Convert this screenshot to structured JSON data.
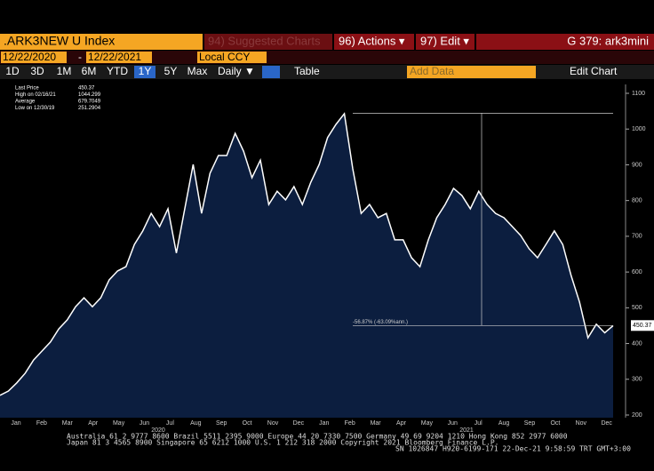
{
  "toolbar": {
    "ticker": ".ARK3NEW U Index",
    "suggested": "94) Suggested Charts",
    "actions": "96) Actions ▾",
    "edit": "97) Edit ▾",
    "page": "G 379: ark3mini",
    "start_date": "12/22/2020",
    "end_date": "12/22/2021",
    "currency": "Local CCY",
    "periods": [
      "1D",
      "3D",
      "1M",
      "6M",
      "YTD",
      "1Y",
      "5Y",
      "Max"
    ],
    "active_period": "1Y",
    "frequency": "Daily ▼",
    "table": "Table",
    "add_data": "Add Data",
    "edit_chart": "Edit Chart"
  },
  "chart_data": {
    "type": "area",
    "color": "#ffffff",
    "fill": "#0c1e3f",
    "values": [
      255,
      267,
      290,
      317,
      354,
      379,
      404,
      441,
      466,
      503,
      528,
      503,
      528,
      578,
      603,
      615,
      677,
      715,
      764,
      727,
      777,
      653,
      777,
      901,
      764,
      876,
      926,
      926,
      988,
      938,
      864,
      913,
      789,
      826,
      802,
      839,
      789,
      851,
      901,
      976,
      1013,
      1043,
      889,
      764,
      789,
      752,
      764,
      690,
      690,
      640,
      615,
      690,
      752,
      789,
      834,
      814,
      777,
      826,
      789,
      764,
      752,
      727,
      702,
      665,
      640,
      677,
      715,
      677,
      590,
      516,
      416,
      454,
      430,
      450
    ],
    "x_axis_labels": [
      "Jan",
      "Feb",
      "Mar",
      "Apr",
      "May",
      "Jun",
      "Jul",
      "Aug",
      "Sep",
      "Oct",
      "Nov",
      "Dec",
      "Jan",
      "Feb",
      "Mar",
      "Apr",
      "May",
      "Jun",
      "Jul",
      "Aug",
      "Sep",
      "Oct",
      "Nov",
      "Dec"
    ],
    "years": [
      "2020",
      "2021"
    ],
    "ylim": [
      200,
      1100
    ],
    "yticks": [
      200,
      300,
      400,
      500,
      600,
      700,
      800,
      900,
      1000,
      1100
    ],
    "legend": [
      {
        "label": "Last Price",
        "value": 450.37
      },
      {
        "label": "High on 02/16/21",
        "value": 1044.299
      },
      {
        "label": "Average",
        "value": 679.7049
      },
      {
        "label": "Low on 12/30/19",
        "value": 251.2904
      }
    ],
    "last_label": "450.37",
    "annotation": "-56.87% (-63.09%ann.)"
  },
  "footer": [
    "Australia 61 2 9777 8600 Brazil 5511 2395 9000 Europe 44 20 7330 7500 Germany 49 69 9204 1210 Hong Kong 852 2977 6000",
    "Japan 81 3 4565 8900     Singapore 65 6212 1000     U.S. 1 212 318 2000     Copyright 2021 Bloomberg Finance L.P.",
    "SN 1026847 H920-6199-171 22-Dec-21  9:58:59 TRT  GMT+3:00"
  ]
}
